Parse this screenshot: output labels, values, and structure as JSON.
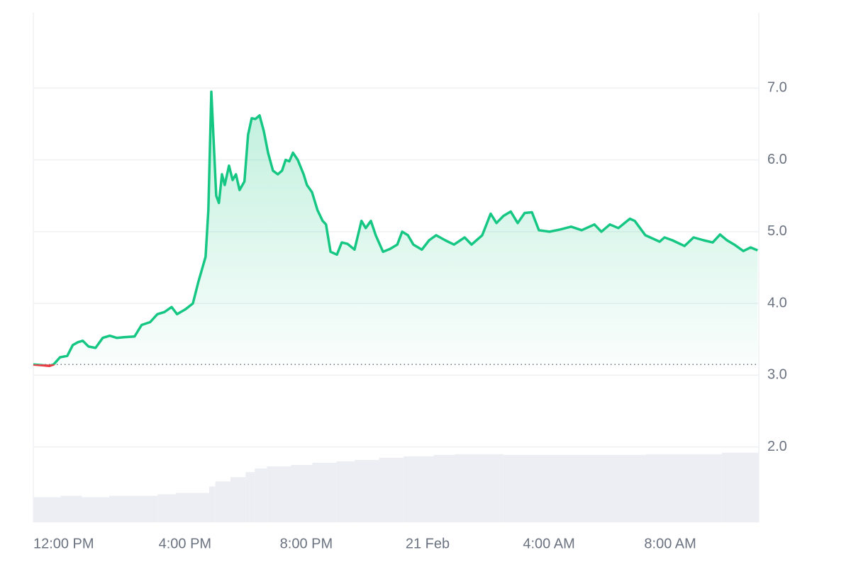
{
  "chart_data": {
    "type": "line",
    "x": [
      -1.0,
      -0.7,
      -0.47,
      -0.33,
      -0.12,
      0.12,
      0.3,
      0.47,
      0.63,
      0.82,
      1.05,
      1.29,
      1.52,
      1.75,
      1.99,
      2.34,
      2.57,
      2.85,
      3.09,
      3.32,
      3.56,
      3.74,
      4.02,
      4.26,
      4.44,
      4.68,
      4.77,
      4.87,
      5.03,
      5.12,
      5.22,
      5.31,
      5.45,
      5.57,
      5.68,
      5.8,
      5.96,
      6.08,
      6.2,
      6.32,
      6.46,
      6.6,
      6.74,
      6.9,
      7.06,
      7.2,
      7.32,
      7.44,
      7.56,
      7.72,
      7.91,
      8.02,
      8.19,
      8.37,
      8.54,
      8.65,
      8.8,
      9.01,
      9.17,
      9.36,
      9.59,
      9.82,
      9.96,
      10.13,
      10.29,
      10.53,
      10.76,
      11.0,
      11.16,
      11.35,
      11.53,
      11.81,
      12.05,
      12.28,
      12.58,
      12.87,
      13.22,
      13.45,
      13.8,
      14.08,
      14.27,
      14.5,
      14.74,
      14.97,
      15.2,
      15.44,
      15.67,
      16.02,
      16.37,
      16.73,
      17.08,
      17.5,
      17.73,
      18.01,
      18.29,
      18.67,
      18.83,
      19.18,
      19.65,
      19.81,
      20.07,
      20.47,
      20.77,
      21.1,
      21.4,
      21.64,
      21.87,
      22.11,
      22.41,
      22.65,
      22.88
    ],
    "values": [
      3.15,
      3.14,
      3.13,
      3.15,
      3.25,
      3.27,
      3.42,
      3.46,
      3.48,
      3.4,
      3.38,
      3.52,
      3.55,
      3.52,
      3.53,
      3.54,
      3.7,
      3.74,
      3.85,
      3.88,
      3.95,
      3.85,
      3.92,
      4.0,
      4.3,
      4.65,
      5.3,
      6.95,
      5.5,
      5.4,
      5.8,
      5.65,
      5.92,
      5.72,
      5.8,
      5.58,
      5.7,
      6.35,
      6.58,
      6.57,
      6.62,
      6.4,
      6.1,
      5.85,
      5.8,
      5.85,
      6.0,
      5.98,
      6.1,
      6.0,
      5.8,
      5.65,
      5.55,
      5.3,
      5.15,
      5.1,
      4.72,
      4.68,
      4.85,
      4.83,
      4.75,
      5.15,
      5.05,
      5.15,
      4.95,
      4.72,
      4.76,
      4.82,
      5.0,
      4.95,
      4.82,
      4.75,
      4.88,
      4.95,
      4.88,
      4.82,
      4.92,
      4.82,
      4.95,
      5.25,
      5.12,
      5.22,
      5.28,
      5.12,
      5.26,
      5.27,
      5.02,
      5.0,
      5.03,
      5.07,
      5.02,
      5.1,
      5.0,
      5.1,
      5.05,
      5.18,
      5.15,
      4.95,
      4.86,
      4.92,
      4.88,
      4.8,
      4.92,
      4.88,
      4.85,
      4.96,
      4.88,
      4.82,
      4.73,
      4.78,
      4.74
    ],
    "baseline": 3.15,
    "color_up": "#16c784",
    "color_down": "#ea3943",
    "volume": {
      "color": "#eceef3",
      "x": [
        -1.0,
        -0.1,
        0.6,
        1.5,
        3.1,
        3.7,
        4.8,
        5.0,
        5.5,
        6.0,
        6.3,
        6.7,
        7.5,
        8.2,
        9.0,
        9.6,
        10.4,
        11.2,
        12.2,
        12.9,
        14.5,
        19.2,
        21.7
      ],
      "values": [
        1.3,
        1.32,
        1.3,
        1.32,
        1.34,
        1.36,
        1.45,
        1.52,
        1.58,
        1.65,
        1.7,
        1.73,
        1.75,
        1.78,
        1.8,
        1.82,
        1.85,
        1.87,
        1.89,
        1.9,
        1.89,
        1.9,
        1.92
      ]
    },
    "xlim": [
      -1.0,
      22.92
    ],
    "ylim": [
      0.95,
      8.05
    ],
    "xticks": [
      {
        "value": 0,
        "label": "12:00 PM"
      },
      {
        "value": 4,
        "label": "4:00 PM"
      },
      {
        "value": 8,
        "label": "8:00 PM"
      },
      {
        "value": 12,
        "label": "21 Feb"
      },
      {
        "value": 16,
        "label": "4:00 AM"
      },
      {
        "value": 20,
        "label": "8:00 AM"
      }
    ],
    "yticks": [
      {
        "value": 2,
        "label": "2.0"
      },
      {
        "value": 3,
        "label": "3.0"
      },
      {
        "value": 4,
        "label": "4.0"
      },
      {
        "value": 5,
        "label": "5.0"
      },
      {
        "value": 6,
        "label": "6.0"
      },
      {
        "value": 7,
        "label": "7.0"
      }
    ],
    "grid": true
  }
}
